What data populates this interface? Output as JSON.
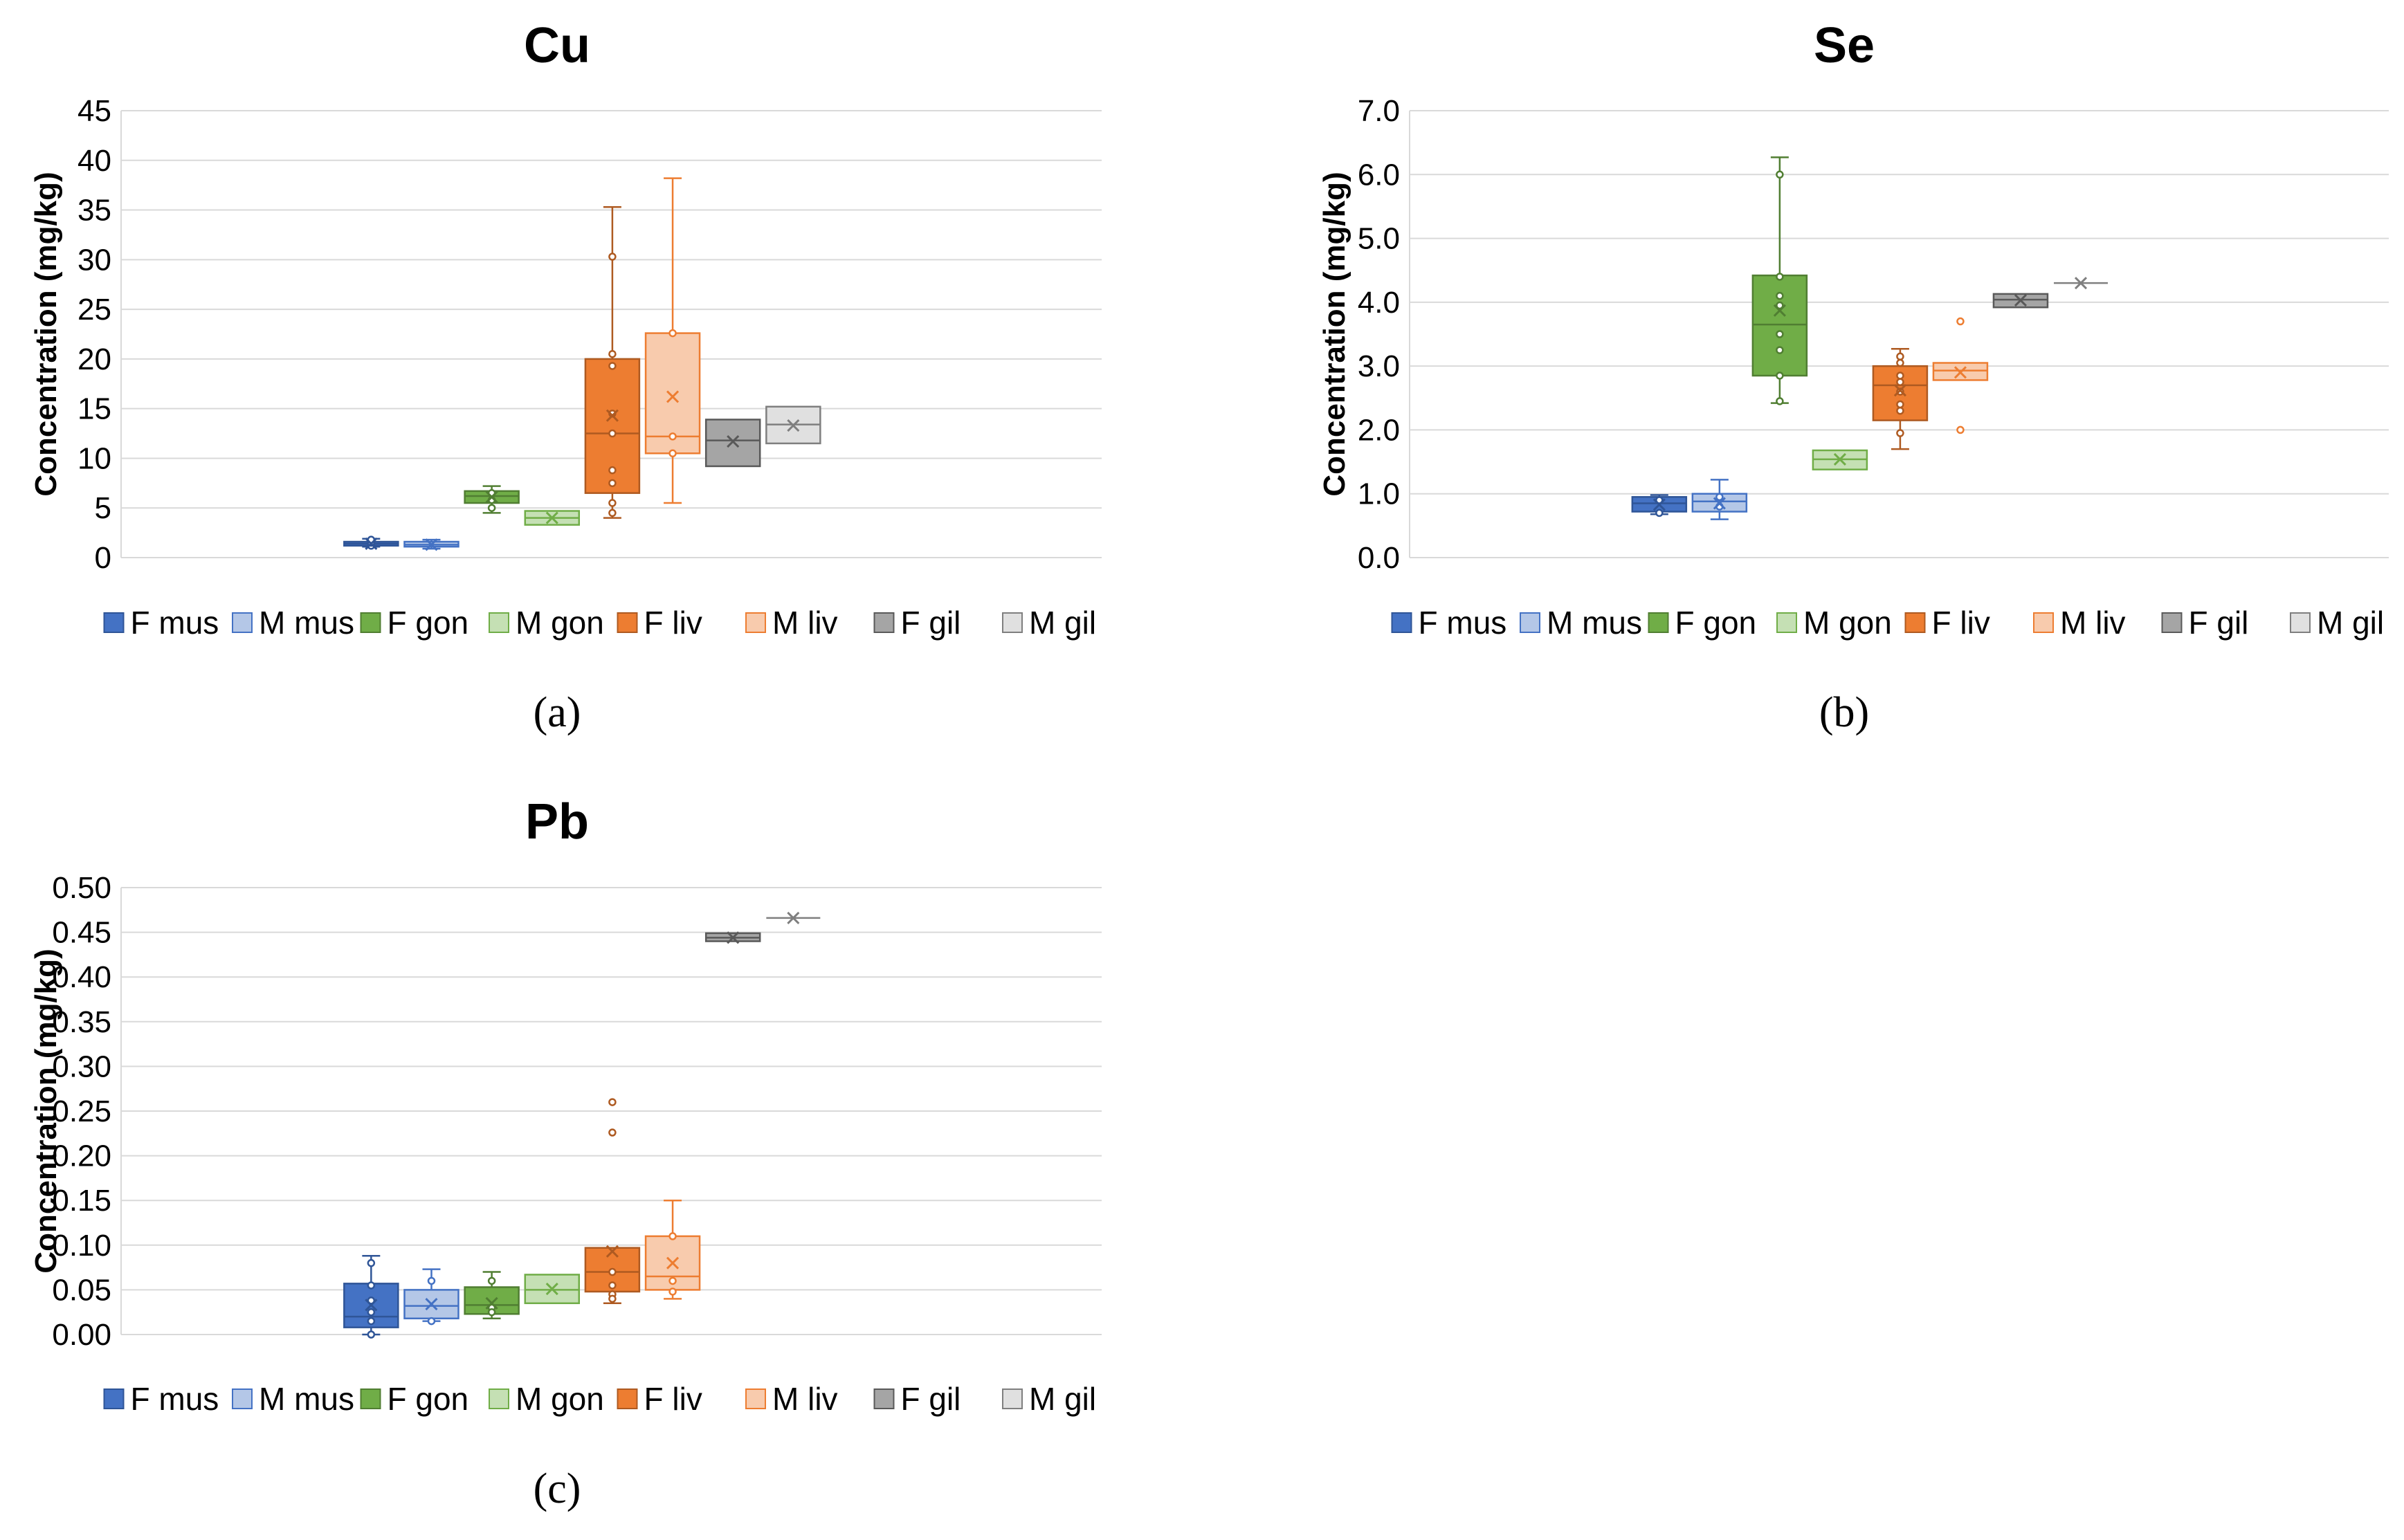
{
  "chart_data": [
    {
      "type": "box",
      "panel": "(a)",
      "title": "Cu",
      "ylabel": "Concentration (mg/kg)",
      "ylim": [
        0,
        45
      ],
      "yticks": [
        "0",
        "5",
        "10",
        "15",
        "20",
        "25",
        "30",
        "35",
        "40",
        "45"
      ],
      "legend_position": "bottom",
      "series": [
        {
          "name": "F mus",
          "min": 1.1,
          "q1": 1.2,
          "median": 1.4,
          "q3": 1.6,
          "max": 1.9,
          "mean": 1.4,
          "points": [
            1.2,
            1.5,
            1.8
          ]
        },
        {
          "name": "M mus",
          "min": 0.9,
          "q1": 1.1,
          "median": 1.3,
          "q3": 1.6,
          "max": 1.8,
          "mean": 1.3,
          "points": []
        },
        {
          "name": "F gon",
          "min": 4.5,
          "q1": 5.5,
          "median": 6.2,
          "q3": 6.7,
          "max": 7.2,
          "mean": 6.1,
          "points": [
            5.0,
            5.8,
            6.5
          ]
        },
        {
          "name": "M gon",
          "min": 3.3,
          "q1": 3.3,
          "median": 4.0,
          "q3": 4.7,
          "max": 4.7,
          "mean": 4.0,
          "points": []
        },
        {
          "name": "F liv",
          "min": 4.0,
          "q1": 6.5,
          "median": 12.5,
          "q3": 20.0,
          "max": 35.3,
          "mean": 14.3,
          "points": [
            30.3,
            20.5,
            19.3,
            14.5,
            12.5,
            8.8,
            7.5,
            5.5,
            4.5
          ]
        },
        {
          "name": "M liv",
          "min": 5.5,
          "q1": 10.5,
          "median": 12.2,
          "q3": 22.6,
          "max": 38.2,
          "mean": 16.2,
          "points": [
            22.6,
            12.2,
            10.5
          ]
        },
        {
          "name": "F gil",
          "min": 9.2,
          "q1": 9.2,
          "median": 11.8,
          "q3": 13.9,
          "max": 13.9,
          "mean": 11.7,
          "points": []
        },
        {
          "name": "M gil",
          "min": 11.5,
          "q1": 11.5,
          "median": 13.4,
          "q3": 15.2,
          "max": 15.2,
          "mean": 13.3,
          "points": []
        }
      ]
    },
    {
      "type": "box",
      "panel": "(b)",
      "title": "Se",
      "ylabel": "Concentration (mg/kg)",
      "ylim": [
        0,
        7
      ],
      "yticks": [
        "0.0",
        "1.0",
        "2.0",
        "3.0",
        "4.0",
        "5.0",
        "6.0",
        "7.0"
      ],
      "legend_position": "bottom",
      "series": [
        {
          "name": "F mus",
          "min": 0.68,
          "q1": 0.72,
          "median": 0.85,
          "q3": 0.95,
          "max": 0.98,
          "mean": 0.83,
          "points": [
            0.7,
            0.9
          ]
        },
        {
          "name": "M mus",
          "min": 0.6,
          "q1": 0.72,
          "median": 0.88,
          "q3": 1.0,
          "max": 1.22,
          "mean": 0.85,
          "points": [
            0.8,
            0.95
          ]
        },
        {
          "name": "F gon",
          "min": 2.42,
          "q1": 2.85,
          "median": 3.65,
          "q3": 4.42,
          "max": 6.27,
          "mean": 3.87,
          "points": [
            6.0,
            4.4,
            4.1,
            3.95,
            3.5,
            3.25,
            2.85,
            2.45
          ]
        },
        {
          "name": "M gon",
          "min": 1.38,
          "q1": 1.38,
          "median": 1.54,
          "q3": 1.68,
          "max": 1.68,
          "mean": 1.54,
          "points": []
        },
        {
          "name": "F liv",
          "min": 1.7,
          "q1": 2.15,
          "median": 2.7,
          "q3": 3.0,
          "max": 3.27,
          "mean": 2.62,
          "points": [
            3.15,
            3.05,
            2.85,
            2.75,
            2.6,
            2.4,
            2.3,
            1.95
          ]
        },
        {
          "name": "M liv",
          "min": 2.78,
          "q1": 2.78,
          "median": 2.93,
          "q3": 3.05,
          "max": 3.05,
          "mean": 2.9,
          "points": [
            3.7,
            2.0
          ]
        },
        {
          "name": "F gil",
          "min": 3.92,
          "q1": 3.92,
          "median": 4.04,
          "q3": 4.13,
          "max": 4.13,
          "mean": 4.03,
          "points": []
        },
        {
          "name": "M gil",
          "min": 4.3,
          "q1": 4.3,
          "median": 4.3,
          "q3": 4.3,
          "max": 4.3,
          "mean": 4.3,
          "points": []
        }
      ]
    },
    {
      "type": "box",
      "panel": "(c)",
      "title": "Pb",
      "ylabel": "Concentration (mg/kg)",
      "ylim": [
        0,
        0.5
      ],
      "yticks": [
        "0.00",
        "0.05",
        "0.10",
        "0.15",
        "0.20",
        "0.25",
        "0.30",
        "0.35",
        "0.40",
        "0.45",
        "0.50"
      ],
      "legend_position": "bottom",
      "series": [
        {
          "name": "F mus",
          "min": 0.0,
          "q1": 0.008,
          "median": 0.02,
          "q3": 0.057,
          "max": 0.088,
          "mean": 0.033,
          "points": [
            0.08,
            0.055,
            0.038,
            0.025,
            0.015,
            0.0
          ]
        },
        {
          "name": "M mus",
          "min": 0.015,
          "q1": 0.018,
          "median": 0.032,
          "q3": 0.05,
          "max": 0.073,
          "mean": 0.034,
          "points": [
            0.06,
            0.015
          ]
        },
        {
          "name": "F gon",
          "min": 0.018,
          "q1": 0.023,
          "median": 0.033,
          "q3": 0.053,
          "max": 0.07,
          "mean": 0.035,
          "points": [
            0.06,
            0.03,
            0.025
          ]
        },
        {
          "name": "M gon",
          "min": 0.035,
          "q1": 0.035,
          "median": 0.05,
          "q3": 0.067,
          "max": 0.067,
          "mean": 0.051,
          "points": []
        },
        {
          "name": "F liv",
          "min": 0.035,
          "q1": 0.048,
          "median": 0.07,
          "q3": 0.097,
          "max": 0.097,
          "mean": 0.093,
          "points": [
            0.26,
            0.226,
            0.07,
            0.055,
            0.045,
            0.04
          ]
        },
        {
          "name": "M liv",
          "min": 0.04,
          "q1": 0.05,
          "median": 0.065,
          "q3": 0.11,
          "max": 0.15,
          "mean": 0.08,
          "points": [
            0.11,
            0.06,
            0.048
          ]
        },
        {
          "name": "F gil",
          "min": 0.44,
          "q1": 0.44,
          "median": 0.444,
          "q3": 0.449,
          "max": 0.449,
          "mean": 0.444,
          "points": []
        },
        {
          "name": "M gil",
          "min": 0.466,
          "q1": 0.466,
          "median": 0.466,
          "q3": 0.466,
          "max": 0.466,
          "mean": 0.466,
          "points": []
        }
      ]
    }
  ],
  "colors": {
    "F mus": {
      "fill": "#4472c4",
      "stroke": "#2f5597"
    },
    "M mus": {
      "fill": "#b4c7e7",
      "stroke": "#4472c4"
    },
    "F gon": {
      "fill": "#70ad47",
      "stroke": "#507e32"
    },
    "M gon": {
      "fill": "#c5e0b4",
      "stroke": "#70ad47"
    },
    "F liv": {
      "fill": "#ed7d31",
      "stroke": "#ae5a21"
    },
    "M liv": {
      "fill": "#f8cbad",
      "stroke": "#ed7d31"
    },
    "F gil": {
      "fill": "#a5a5a5",
      "stroke": "#595959"
    },
    "M gil": {
      "fill": "#e0e0e0",
      "stroke": "#7f7f7f"
    }
  }
}
